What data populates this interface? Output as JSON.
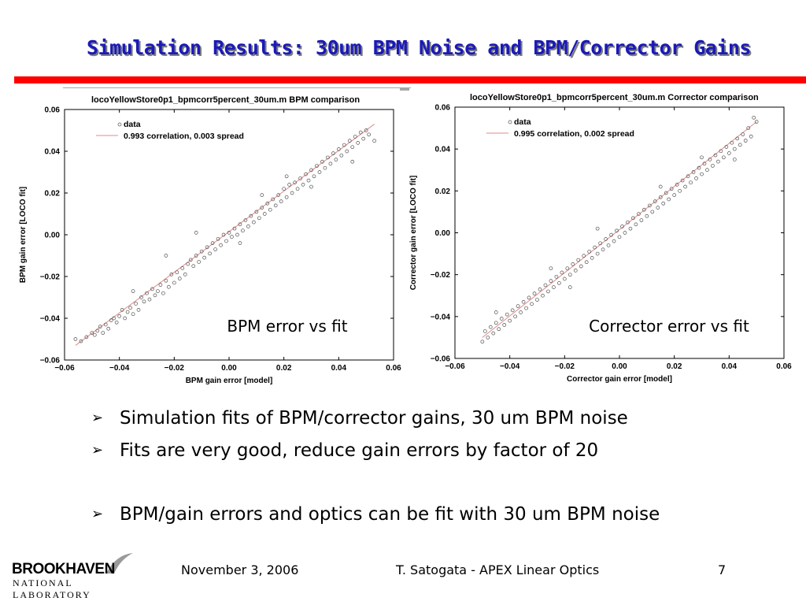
{
  "slide": {
    "title": "Simulation Results: 30um BPM Noise and BPM/Corrector Gains",
    "bullets": [
      "Simulation fits of BPM/corrector gains, 30 um BPM noise",
      "Fits are very good, reduce gain errors by factor of 20",
      "BPM/gain errors and optics can be fit with 30 um BPM noise"
    ],
    "bullet_glyph": "➢",
    "footer": {
      "date": "November 3, 2006",
      "author": "T. Satogata - APEX Linear Optics",
      "page": "7"
    },
    "logo": {
      "line1": "BROOKHAVEN",
      "line2": "NATIONAL LABORATORY"
    },
    "colors": {
      "title": "#1a1ab8",
      "rule": "#ff0000",
      "fit_line": "#e08a8a",
      "marker": "#505050"
    }
  },
  "chart_data": [
    {
      "type": "scatter",
      "title": "locoYellowStore0p1_bpmcorr5percent_30um.m BPM comparison",
      "xlabel": "BPM gain error [model]",
      "ylabel": "BPM gain error [LOCO fit]",
      "xlim": [
        -0.06,
        0.06
      ],
      "ylim": [
        -0.06,
        0.06
      ],
      "xticks": [
        "−0.06",
        "−0.04",
        "−0.02",
        "0.00",
        "0.02",
        "0.04",
        "0.06"
      ],
      "yticks": [
        "−0.06",
        "−0.04",
        "−0.02",
        "0.00",
        "0.02",
        "0.04",
        "0.06"
      ],
      "legend": [
        "data",
        "0.993 correlation, 0.003 spread"
      ],
      "overlay_label": "BPM error vs fit",
      "fit_line": [
        [
          -0.056,
          -0.053
        ],
        [
          0.053,
          0.053
        ]
      ],
      "points": [
        [
          -0.056,
          -0.05
        ],
        [
          -0.054,
          -0.051
        ],
        [
          -0.052,
          -0.049
        ],
        [
          -0.05,
          -0.047
        ],
        [
          -0.049,
          -0.048
        ],
        [
          -0.048,
          -0.046
        ],
        [
          -0.047,
          -0.044
        ],
        [
          -0.046,
          -0.047
        ],
        [
          -0.045,
          -0.043
        ],
        [
          -0.044,
          -0.045
        ],
        [
          -0.043,
          -0.041
        ],
        [
          -0.042,
          -0.04
        ],
        [
          -0.041,
          -0.042
        ],
        [
          -0.04,
          -0.039
        ],
        [
          -0.039,
          -0.036
        ],
        [
          -0.038,
          -0.04
        ],
        [
          -0.037,
          -0.037
        ],
        [
          -0.036,
          -0.035
        ],
        [
          -0.035,
          -0.038
        ],
        [
          -0.034,
          -0.033
        ],
        [
          -0.033,
          -0.036
        ],
        [
          -0.032,
          -0.03
        ],
        [
          -0.031,
          -0.032
        ],
        [
          -0.03,
          -0.028
        ],
        [
          -0.029,
          -0.031
        ],
        [
          -0.028,
          -0.026
        ],
        [
          -0.027,
          -0.029
        ],
        [
          -0.026,
          -0.027
        ],
        [
          -0.025,
          -0.024
        ],
        [
          -0.024,
          -0.028
        ],
        [
          -0.023,
          -0.022
        ],
        [
          -0.022,
          -0.025
        ],
        [
          -0.021,
          -0.019
        ],
        [
          -0.02,
          -0.023
        ],
        [
          -0.019,
          -0.018
        ],
        [
          -0.018,
          -0.021
        ],
        [
          -0.017,
          -0.016
        ],
        [
          -0.016,
          -0.019
        ],
        [
          -0.015,
          -0.014
        ],
        [
          -0.014,
          -0.012
        ],
        [
          -0.013,
          -0.015
        ],
        [
          -0.012,
          -0.01
        ],
        [
          -0.011,
          -0.013
        ],
        [
          -0.01,
          -0.008
        ],
        [
          -0.009,
          -0.011
        ],
        [
          -0.008,
          -0.006
        ],
        [
          -0.007,
          -0.009
        ],
        [
          -0.006,
          -0.004
        ],
        [
          -0.005,
          -0.007
        ],
        [
          -0.004,
          -0.002
        ],
        [
          -0.003,
          -0.005
        ],
        [
          -0.002,
          0.0
        ],
        [
          -0.001,
          -0.003
        ],
        [
          0.0,
          0.001
        ],
        [
          0.001,
          -0.001
        ],
        [
          0.002,
          0.003
        ],
        [
          0.003,
          0.0
        ],
        [
          0.004,
          0.005
        ],
        [
          0.005,
          0.002
        ],
        [
          0.006,
          0.007
        ],
        [
          0.007,
          0.004
        ],
        [
          0.008,
          0.009
        ],
        [
          0.009,
          0.006
        ],
        [
          0.01,
          0.011
        ],
        [
          0.011,
          0.008
        ],
        [
          0.012,
          0.013
        ],
        [
          0.013,
          0.01
        ],
        [
          0.014,
          0.015
        ],
        [
          0.015,
          0.012
        ],
        [
          0.016,
          0.017
        ],
        [
          0.017,
          0.014
        ],
        [
          0.018,
          0.019
        ],
        [
          0.019,
          0.016
        ],
        [
          0.02,
          0.022
        ],
        [
          0.021,
          0.018
        ],
        [
          0.022,
          0.024
        ],
        [
          0.023,
          0.02
        ],
        [
          0.024,
          0.025
        ],
        [
          0.025,
          0.022
        ],
        [
          0.026,
          0.027
        ],
        [
          0.027,
          0.024
        ],
        [
          0.028,
          0.029
        ],
        [
          0.029,
          0.026
        ],
        [
          0.03,
          0.031
        ],
        [
          0.031,
          0.028
        ],
        [
          0.032,
          0.033
        ],
        [
          0.033,
          0.03
        ],
        [
          0.034,
          0.035
        ],
        [
          0.035,
          0.032
        ],
        [
          0.036,
          0.037
        ],
        [
          0.037,
          0.034
        ],
        [
          0.038,
          0.039
        ],
        [
          0.039,
          0.036
        ],
        [
          0.04,
          0.041
        ],
        [
          0.041,
          0.038
        ],
        [
          0.042,
          0.043
        ],
        [
          0.043,
          0.04
        ],
        [
          0.044,
          0.045
        ],
        [
          0.045,
          0.042
        ],
        [
          0.046,
          0.047
        ],
        [
          0.047,
          0.044
        ],
        [
          0.048,
          0.049
        ],
        [
          0.049,
          0.046
        ],
        [
          0.05,
          0.05
        ],
        [
          0.051,
          0.048
        ],
        [
          0.053,
          0.045
        ],
        [
          -0.023,
          -0.01
        ],
        [
          -0.012,
          0.001
        ],
        [
          0.012,
          0.019
        ],
        [
          0.03,
          0.023
        ],
        [
          0.045,
          0.035
        ],
        [
          -0.035,
          -0.027
        ],
        [
          0.004,
          -0.004
        ],
        [
          0.021,
          0.028
        ]
      ]
    },
    {
      "type": "scatter",
      "title": "locoYellowStore0p1_bpmcorr5percent_30um.m Corrector comparison",
      "xlabel": "Corrector gain error [model]",
      "ylabel": "Corrector gain error [LOCO fit]",
      "xlim": [
        -0.06,
        0.06
      ],
      "ylim": [
        -0.06,
        0.06
      ],
      "xticks": [
        "−0.06",
        "−0.04",
        "−0.02",
        "0.00",
        "0.02",
        "0.04",
        "0.06"
      ],
      "yticks": [
        "−0.06",
        "−0.04",
        "−0.02",
        "0.00",
        "0.02",
        "0.04",
        "0.06"
      ],
      "legend": [
        "data",
        "0.995 correlation, 0.002 spread"
      ],
      "overlay_label": "Corrector error vs fit",
      "fit_line": [
        [
          -0.05,
          -0.05
        ],
        [
          0.05,
          0.053
        ]
      ],
      "points": [
        [
          -0.05,
          -0.052
        ],
        [
          -0.049,
          -0.047
        ],
        [
          -0.048,
          -0.05
        ],
        [
          -0.047,
          -0.045
        ],
        [
          -0.046,
          -0.048
        ],
        [
          -0.045,
          -0.043
        ],
        [
          -0.044,
          -0.046
        ],
        [
          -0.043,
          -0.041
        ],
        [
          -0.042,
          -0.044
        ],
        [
          -0.041,
          -0.039
        ],
        [
          -0.04,
          -0.042
        ],
        [
          -0.039,
          -0.037
        ],
        [
          -0.038,
          -0.04
        ],
        [
          -0.037,
          -0.035
        ],
        [
          -0.036,
          -0.038
        ],
        [
          -0.035,
          -0.033
        ],
        [
          -0.034,
          -0.036
        ],
        [
          -0.033,
          -0.031
        ],
        [
          -0.032,
          -0.034
        ],
        [
          -0.031,
          -0.029
        ],
        [
          -0.03,
          -0.032
        ],
        [
          -0.029,
          -0.027
        ],
        [
          -0.028,
          -0.03
        ],
        [
          -0.027,
          -0.025
        ],
        [
          -0.026,
          -0.028
        ],
        [
          -0.025,
          -0.023
        ],
        [
          -0.024,
          -0.026
        ],
        [
          -0.023,
          -0.021
        ],
        [
          -0.022,
          -0.024
        ],
        [
          -0.021,
          -0.019
        ],
        [
          -0.02,
          -0.022
        ],
        [
          -0.019,
          -0.017
        ],
        [
          -0.018,
          -0.02
        ],
        [
          -0.017,
          -0.015
        ],
        [
          -0.016,
          -0.018
        ],
        [
          -0.015,
          -0.013
        ],
        [
          -0.014,
          -0.016
        ],
        [
          -0.013,
          -0.011
        ],
        [
          -0.012,
          -0.014
        ],
        [
          -0.011,
          -0.009
        ],
        [
          -0.01,
          -0.012
        ],
        [
          -0.009,
          -0.007
        ],
        [
          -0.008,
          -0.01
        ],
        [
          -0.007,
          -0.005
        ],
        [
          -0.006,
          -0.008
        ],
        [
          -0.005,
          -0.003
        ],
        [
          -0.004,
          -0.006
        ],
        [
          -0.003,
          -0.001
        ],
        [
          -0.002,
          -0.004
        ],
        [
          -0.001,
          0.001
        ],
        [
          0.0,
          -0.002
        ],
        [
          0.001,
          0.003
        ],
        [
          0.002,
          0.0
        ],
        [
          0.003,
          0.005
        ],
        [
          0.004,
          0.002
        ],
        [
          0.005,
          0.007
        ],
        [
          0.006,
          0.004
        ],
        [
          0.007,
          0.009
        ],
        [
          0.008,
          0.006
        ],
        [
          0.009,
          0.011
        ],
        [
          0.01,
          0.008
        ],
        [
          0.011,
          0.013
        ],
        [
          0.012,
          0.01
        ],
        [
          0.013,
          0.015
        ],
        [
          0.014,
          0.012
        ],
        [
          0.015,
          0.017
        ],
        [
          0.016,
          0.014
        ],
        [
          0.017,
          0.019
        ],
        [
          0.018,
          0.016
        ],
        [
          0.019,
          0.021
        ],
        [
          0.02,
          0.018
        ],
        [
          0.021,
          0.023
        ],
        [
          0.022,
          0.02
        ],
        [
          0.023,
          0.025
        ],
        [
          0.024,
          0.022
        ],
        [
          0.025,
          0.027
        ],
        [
          0.026,
          0.024
        ],
        [
          0.027,
          0.029
        ],
        [
          0.028,
          0.026
        ],
        [
          0.029,
          0.031
        ],
        [
          0.03,
          0.028
        ],
        [
          0.031,
          0.033
        ],
        [
          0.032,
          0.03
        ],
        [
          0.033,
          0.035
        ],
        [
          0.034,
          0.032
        ],
        [
          0.035,
          0.037
        ],
        [
          0.036,
          0.034
        ],
        [
          0.037,
          0.039
        ],
        [
          0.038,
          0.036
        ],
        [
          0.039,
          0.041
        ],
        [
          0.04,
          0.038
        ],
        [
          0.041,
          0.043
        ],
        [
          0.042,
          0.04
        ],
        [
          0.043,
          0.045
        ],
        [
          0.044,
          0.042
        ],
        [
          0.045,
          0.047
        ],
        [
          0.046,
          0.044
        ],
        [
          0.047,
          0.05
        ],
        [
          0.048,
          0.046
        ],
        [
          0.049,
          0.055
        ],
        [
          0.05,
          0.053
        ],
        [
          -0.045,
          -0.038
        ],
        [
          -0.025,
          -0.017
        ],
        [
          -0.008,
          0.002
        ],
        [
          0.015,
          0.022
        ],
        [
          0.03,
          0.036
        ],
        [
          0.042,
          0.035
        ],
        [
          -0.018,
          -0.026
        ]
      ]
    }
  ]
}
